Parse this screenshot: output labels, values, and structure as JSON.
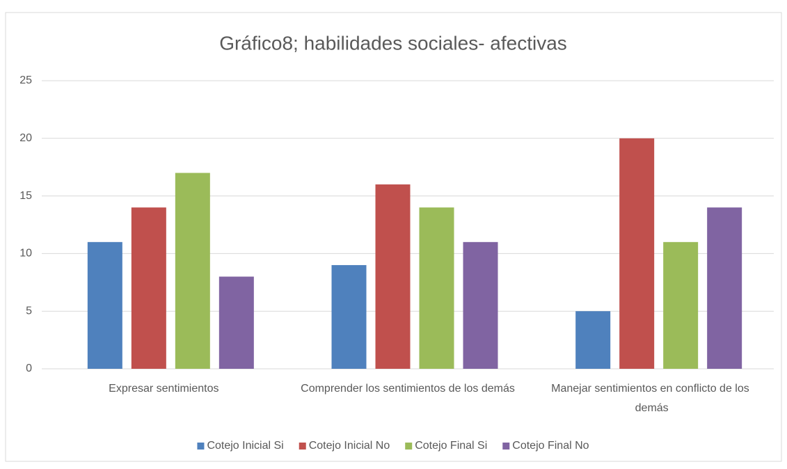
{
  "chart_data": {
    "type": "bar",
    "title": "Gráfico8; habilidades sociales- afectivas",
    "categories": [
      "Expresar sentimientos",
      "Comprender los sentimientos de los demás",
      "Manejar sentimientos en conflicto de los demás"
    ],
    "series": [
      {
        "name": "Cotejo Inicial Si",
        "color": "#4f81bd",
        "values": [
          11,
          9,
          5
        ]
      },
      {
        "name": "Cotejo Inicial No",
        "color": "#c0504d",
        "values": [
          14,
          16,
          20
        ]
      },
      {
        "name": "Cotejo Final Si",
        "color": "#9bbb59",
        "values": [
          17,
          14,
          11
        ]
      },
      {
        "name": "Cotejo Final No",
        "color": "#8064a2",
        "values": [
          8,
          11,
          14
        ]
      }
    ],
    "ylim": [
      0,
      25
    ],
    "yticks": [
      0,
      5,
      10,
      15,
      20,
      25
    ],
    "grid": true,
    "legend": "bottom"
  }
}
